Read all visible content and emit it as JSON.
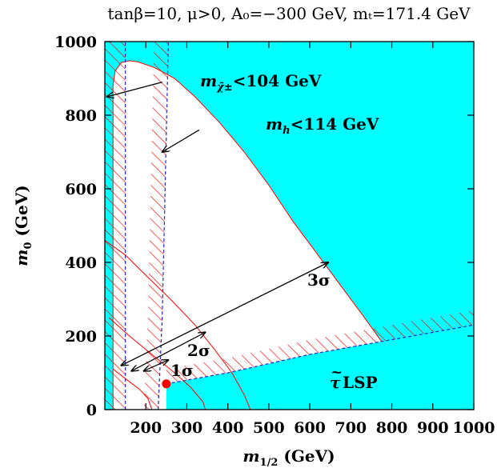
{
  "chart_data": {
    "type": "area",
    "title": "tanβ=10, μ>0, A₀=−300 GeV, mₜ=171.4 GeV",
    "xlabel": "m1/2 (GeV)",
    "ylabel": "m0 (GeV)",
    "xlim": [
      100,
      1000
    ],
    "ylim": [
      0,
      1000
    ],
    "x_ticks": [
      200,
      300,
      400,
      500,
      600,
      700,
      800,
      900,
      1000
    ],
    "y_ticks": [
      0,
      200,
      400,
      600,
      800,
      1000
    ],
    "grid": false,
    "colors": {
      "excluded_fill": "#00ffff",
      "contour": "#ff0000",
      "limit_line": "#3333cc",
      "hatch": "#ff0000",
      "best_fit": "#ff0000"
    },
    "regions": {
      "excluded_boundary": [
        [
          120,
          0
        ],
        [
          120,
          880
        ],
        [
          125,
          920
        ],
        [
          140,
          943
        ],
        [
          160,
          948
        ],
        [
          180,
          945
        ],
        [
          220,
          930
        ],
        [
          270,
          900
        ],
        [
          320,
          850
        ],
        [
          380,
          780
        ],
        [
          440,
          700
        ],
        [
          500,
          610
        ],
        [
          560,
          510
        ],
        [
          620,
          420
        ],
        [
          680,
          330
        ],
        [
          730,
          255
        ],
        [
          775,
          185
        ],
        [
          810,
          115
        ],
        [
          828,
          55
        ],
        [
          835,
          0
        ]
      ],
      "stau_lsp_line": [
        [
          250,
          70
        ],
        [
          400,
          100
        ],
        [
          600,
          150
        ],
        [
          800,
          190
        ],
        [
          1000,
          230
        ]
      ],
      "chargino_limit_x": 150,
      "higgs_limit_line": [
        [
          230,
          0
        ],
        [
          240,
          250
        ],
        [
          245,
          500
        ],
        [
          250,
          750
        ],
        [
          255,
          1000
        ]
      ],
      "sigma_contours": [
        {
          "label": "1σ",
          "points": [
            [
              120,
              110
            ],
            [
              155,
              80
            ],
            [
              185,
              55
            ],
            [
              205,
              30
            ],
            [
              215,
              0
            ]
          ]
        },
        {
          "label": "2σ",
          "points": [
            [
              110,
              250
            ],
            [
              160,
              200
            ],
            [
              220,
              145
            ],
            [
              270,
              100
            ],
            [
              310,
              60
            ],
            [
              340,
              20
            ],
            [
              345,
              0
            ]
          ]
        },
        {
          "label": "3σ",
          "points": [
            [
              100,
              460
            ],
            [
              150,
              420
            ],
            [
              200,
              365
            ],
            [
              260,
              300
            ],
            [
              320,
              230
            ],
            [
              370,
              160
            ],
            [
              410,
              100
            ],
            [
              440,
              40
            ],
            [
              455,
              0
            ]
          ]
        }
      ],
      "best_fit_point": [
        250,
        70
      ]
    },
    "annotations": {
      "chargino": {
        "subscript": "χ̃±",
        "text": "<104 GeV",
        "arrow_to": [
          105,
          850
        ]
      },
      "higgs": {
        "subscript": "h",
        "text": "<114 GeV",
        "arrow_to": [
          240,
          700
        ]
      },
      "sigma3": {
        "text": "3σ",
        "arrow_to": [
          645,
          400
        ],
        "arrow_from": [
          140,
          120
        ]
      },
      "sigma2": {
        "text": "2σ",
        "arrow_to": [
          345,
          210
        ],
        "arrow_from": [
          165,
          105
        ]
      },
      "sigma1": {
        "text": "1σ",
        "arrow_to": [
          255,
          135
        ],
        "arrow_from": [
          195,
          105
        ]
      },
      "stau": {
        "tilde": "~",
        "symbol": "τ",
        "text": "LSP"
      }
    }
  }
}
